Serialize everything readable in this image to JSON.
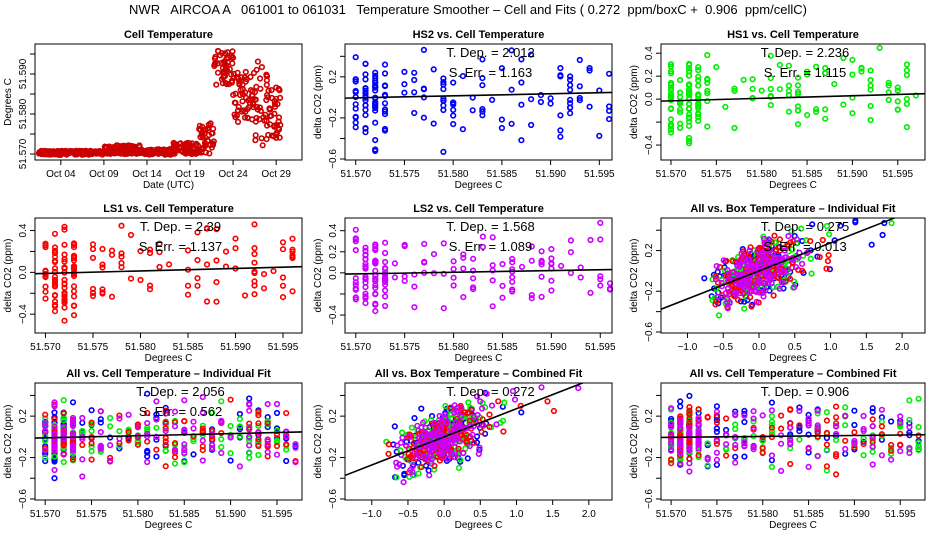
{
  "title": "NWR   AIRCOA A   061001 to 061031   Temperature Smoother – Cell and Fits ( 0.272  ppm/boxC +  0.906  ppm/cellC)",
  "colors": {
    "cell": "#cc0000",
    "HS2": "#0000ff",
    "HS1": "#00ee00",
    "LS1": "#ff0000",
    "LS2": "#cc00ff",
    "fit": "#000000"
  },
  "chart_data": [
    {
      "id": "cell-temperature",
      "type": "scatter",
      "title": "Cell Temperature",
      "xlabel": "Date (UTC)",
      "ylabel": "Degrees C",
      "xlim": [
        0,
        31
      ],
      "ylim": [
        51.5685,
        51.5975
      ],
      "xticks": [
        {
          "v": 3,
          "label": "Oct 04"
        },
        {
          "v": 8,
          "label": "Oct 09"
        },
        {
          "v": 13,
          "label": "Oct 14"
        },
        {
          "v": 18,
          "label": "Oct 19"
        },
        {
          "v": 23,
          "label": "Oct 24"
        },
        {
          "v": 28,
          "label": "Oct 29"
        }
      ],
      "yticks": [
        {
          "v": 51.57,
          "label": "51.570"
        },
        {
          "v": 51.575,
          "label": ""
        },
        {
          "v": 51.58,
          "label": "51.580"
        },
        {
          "v": 51.585,
          "label": ""
        },
        {
          "v": 51.59,
          "label": "51.590"
        },
        {
          "v": 51.595,
          "label": ""
        }
      ],
      "series": [
        {
          "name": "cell",
          "color_key": "cell",
          "segments": [
            {
              "x0": 0.4,
              "x1": 8.0,
              "ylo": 51.5698,
              "yhi": 51.5708
            },
            {
              "x0": 8.0,
              "x1": 12.5,
              "ylo": 51.57,
              "yhi": 51.5722
            },
            {
              "x0": 12.5,
              "x1": 16.0,
              "ylo": 51.5698,
              "yhi": 51.5712
            },
            {
              "x0": 16.0,
              "x1": 19.0,
              "ylo": 51.57,
              "yhi": 51.573
            },
            {
              "x0": 19.0,
              "x1": 20.8,
              "ylo": 51.57,
              "yhi": 51.578
            },
            {
              "x0": 20.8,
              "x1": 23.0,
              "ylo": 51.587,
              "yhi": 51.596
            },
            {
              "x0": 23.0,
              "x1": 25.5,
              "ylo": 51.578,
              "yhi": 51.591
            },
            {
              "x0": 25.5,
              "x1": 27.0,
              "ylo": 51.572,
              "yhi": 51.594
            },
            {
              "x0": 27.0,
              "x1": 28.6,
              "ylo": 51.574,
              "yhi": 51.587
            }
          ]
        }
      ]
    },
    {
      "id": "hs2-vs-cell",
      "type": "scatter",
      "title": "HS2 vs. Cell Temperature",
      "xlabel": "Degrees C",
      "ylabel": "delta CO2 (ppm)",
      "xlim": [
        51.5689,
        51.5963
      ],
      "ylim": [
        -0.61,
        0.52
      ],
      "xticks": [
        51.57,
        51.575,
        51.58,
        51.585,
        51.59,
        51.595
      ],
      "yticks": [
        {
          "v": -0.6,
          "label": "−0.6"
        },
        {
          "v": -0.4,
          "label": ""
        },
        {
          "v": -0.2,
          "label": "−0.2"
        },
        {
          "v": 0.2,
          "label": "0.2"
        },
        {
          "v": 0.4,
          "label": ""
        }
      ],
      "annotations": [
        "T. Dep. =  2.012",
        "S. Err. =  1.163"
      ],
      "fit": {
        "slope_ppm_per_C": 2.012,
        "y_at_51.570": -0.005
      },
      "series": [
        {
          "name": "HS2",
          "color_key": "HS2",
          "spread": 0.28
        }
      ]
    },
    {
      "id": "hs1-vs-cell",
      "type": "scatter",
      "title": "HS1 vs. Cell Temperature",
      "xlabel": "Degrees C",
      "ylabel": "delta CO2 (ppm)",
      "xlim": [
        51.5689,
        51.598
      ],
      "ylim": [
        -0.53,
        0.48
      ],
      "xticks": [
        51.57,
        51.575,
        51.58,
        51.585,
        51.59,
        51.595
      ],
      "yticks": [
        {
          "v": -0.4,
          "label": "−0.4"
        },
        {
          "v": -0.2,
          "label": ""
        },
        {
          "v": 0.0,
          "label": "0.0"
        },
        {
          "v": 0.2,
          "label": "0.2"
        },
        {
          "v": 0.4,
          "label": "0.4"
        }
      ],
      "annotations": [
        "T. Dep. =  2.236",
        "S. Err. =  1.115"
      ],
      "fit": {
        "slope_ppm_per_C": 2.236,
        "y_at_51.570": -0.015
      },
      "series": [
        {
          "name": "HS1",
          "color_key": "HS1",
          "spread": 0.25
        }
      ]
    },
    {
      "id": "ls1-vs-cell",
      "type": "scatter",
      "title": "LS1 vs. Cell Temperature",
      "xlabel": "Degrees C",
      "ylabel": "delta CO2 (ppm)",
      "xlim": [
        51.5689,
        51.597
      ],
      "ylim": [
        -0.58,
        0.52
      ],
      "xticks": [
        51.57,
        51.575,
        51.58,
        51.585,
        51.59,
        51.595
      ],
      "yticks": [
        {
          "v": -0.4,
          "label": "−0.4"
        },
        {
          "v": -0.2,
          "label": ""
        },
        {
          "v": 0.0,
          "label": "0.0"
        },
        {
          "v": 0.2,
          "label": ""
        },
        {
          "v": 0.4,
          "label": "0.4"
        }
      ],
      "annotations": [
        "T. Dep. =  2.39",
        "S. Err. =  1.137"
      ],
      "fit": {
        "slope_ppm_per_C": 2.39,
        "y_at_51.570": -0.01
      },
      "series": [
        {
          "name": "LS1",
          "color_key": "LS1",
          "spread": 0.25
        }
      ]
    },
    {
      "id": "ls2-vs-cell",
      "type": "scatter",
      "title": "LS2 vs. Cell Temperature",
      "xlabel": "Degrees C",
      "ylabel": "delta CO2 (ppm)",
      "xlim": [
        51.5689,
        51.5962
      ],
      "ylim": [
        -0.57,
        0.52
      ],
      "xticks": [
        51.57,
        51.575,
        51.58,
        51.585,
        51.59,
        51.595
      ],
      "yticks": [
        {
          "v": -0.4,
          "label": "−0.4"
        },
        {
          "v": -0.2,
          "label": ""
        },
        {
          "v": 0.0,
          "label": "0.0"
        },
        {
          "v": 0.2,
          "label": "0.2"
        },
        {
          "v": 0.4,
          "label": "0.4"
        }
      ],
      "annotations": [
        "T. Dep. =  1.568",
        "S. Err. =  1.089"
      ],
      "fit": {
        "slope_ppm_per_C": 1.568,
        "y_at_51.570": -0.01
      },
      "series": [
        {
          "name": "LS2",
          "color_key": "LS2",
          "spread": 0.24
        }
      ]
    },
    {
      "id": "all-vs-box-individual",
      "type": "scatter",
      "title": "All vs. Box Temperature – Individual Fit",
      "xlabel": "Degrees C",
      "ylabel": "delta CO2 (ppm)",
      "xlim": [
        -1.37,
        2.32
      ],
      "ylim": [
        -0.61,
        0.52
      ],
      "xticks": [
        {
          "v": -1.0,
          "label": "−1.0"
        },
        {
          "v": -0.5,
          "label": "−0.5"
        },
        {
          "v": 0.0,
          "label": "0.0"
        },
        {
          "v": 0.5,
          "label": "0.5"
        },
        {
          "v": 1.0,
          "label": "1.0"
        },
        {
          "v": 1.5,
          "label": "1.5"
        },
        {
          "v": 2.0,
          "label": "2.0"
        }
      ],
      "yticks": [
        {
          "v": -0.6,
          "label": "−0.6"
        },
        {
          "v": -0.4,
          "label": ""
        },
        {
          "v": -0.2,
          "label": "−0.2"
        },
        {
          "v": 0.2,
          "label": "0.2"
        },
        {
          "v": 0.4,
          "label": ""
        }
      ],
      "annotations": [
        "T. Dep. =  0.275",
        "S. Err. =  0.013"
      ],
      "fit": {
        "slope_ppm_per_C": 0.275,
        "y_at_0": 0.0
      },
      "series": [
        {
          "name": "HS2",
          "color_key": "HS2"
        },
        {
          "name": "HS1",
          "color_key": "HS1"
        },
        {
          "name": "LS1",
          "color_key": "LS1"
        },
        {
          "name": "LS2",
          "color_key": "LS2"
        }
      ]
    },
    {
      "id": "all-vs-cell-individual",
      "type": "scatter",
      "title": "All vs. Cell Temperature – Individual Fit",
      "xlabel": "Degrees C",
      "ylabel": "delta CO2 (ppm)",
      "xlim": [
        51.5689,
        51.5977
      ],
      "ylim": [
        -0.61,
        0.52
      ],
      "xticks": [
        51.57,
        51.575,
        51.58,
        51.585,
        51.59,
        51.595
      ],
      "yticks": [
        {
          "v": -0.6,
          "label": "−0.6"
        },
        {
          "v": -0.4,
          "label": ""
        },
        {
          "v": -0.2,
          "label": "−0.2"
        },
        {
          "v": 0.2,
          "label": "0.2"
        },
        {
          "v": 0.4,
          "label": ""
        }
      ],
      "annotations": [
        "T. Dep. =  2.056",
        "S. Err. =  0.562"
      ],
      "fit": {
        "slope_ppm_per_C": 2.056,
        "y_at_51.570": -0.01
      },
      "series": [
        {
          "name": "HS2",
          "color_key": "HS2"
        },
        {
          "name": "HS1",
          "color_key": "HS1"
        },
        {
          "name": "LS1",
          "color_key": "LS1"
        },
        {
          "name": "LS2",
          "color_key": "LS2"
        }
      ]
    },
    {
      "id": "all-vs-box-combined",
      "type": "scatter",
      "title": "All vs. Box Temperature – Combined Fit",
      "xlabel": "Degrees C",
      "ylabel": "delta CO2 (ppm)",
      "xlim": [
        -1.37,
        2.32
      ],
      "ylim": [
        -0.61,
        0.52
      ],
      "xticks": [
        {
          "v": -1.0,
          "label": "−1.0"
        },
        {
          "v": -0.5,
          "label": "−0.5"
        },
        {
          "v": 0.0,
          "label": "0.0"
        },
        {
          "v": 0.5,
          "label": "0.5"
        },
        {
          "v": 1.0,
          "label": "1.0"
        },
        {
          "v": 1.5,
          "label": "1.5"
        },
        {
          "v": 2.0,
          "label": "2.0"
        }
      ],
      "yticks": [
        {
          "v": -0.6,
          "label": "−0.6"
        },
        {
          "v": -0.4,
          "label": ""
        },
        {
          "v": -0.2,
          "label": "−0.2"
        },
        {
          "v": 0.2,
          "label": "0.2"
        },
        {
          "v": 0.4,
          "label": ""
        }
      ],
      "annotations": [
        "T. Dep. =  0.272"
      ],
      "fit": {
        "slope_ppm_per_C": 0.272,
        "y_at_0": 0.0
      },
      "series": [
        {
          "name": "HS2",
          "color_key": "HS2"
        },
        {
          "name": "HS1",
          "color_key": "HS1"
        },
        {
          "name": "LS1",
          "color_key": "LS1"
        },
        {
          "name": "LS2",
          "color_key": "LS2"
        }
      ]
    },
    {
      "id": "all-vs-cell-combined",
      "type": "scatter",
      "title": "All vs. Cell Temperature – Combined Fit",
      "xlabel": "Degrees C",
      "ylabel": "delta CO2 (ppm)",
      "xlim": [
        51.5689,
        51.5977
      ],
      "ylim": [
        -0.61,
        0.52
      ],
      "xticks": [
        51.57,
        51.575,
        51.58,
        51.585,
        51.59,
        51.595
      ],
      "yticks": [
        {
          "v": -0.6,
          "label": "−0.6"
        },
        {
          "v": -0.4,
          "label": ""
        },
        {
          "v": -0.2,
          "label": "−0.2"
        },
        {
          "v": 0.2,
          "label": "0.2"
        },
        {
          "v": 0.4,
          "label": ""
        }
      ],
      "annotations": [
        "T. Dep. =  0.906"
      ],
      "fit": {
        "slope_ppm_per_C": 0.906,
        "y_at_51.570": -0.005
      },
      "series": [
        {
          "name": "HS2",
          "color_key": "HS2"
        },
        {
          "name": "HS1",
          "color_key": "HS1"
        },
        {
          "name": "LS1",
          "color_key": "LS1"
        },
        {
          "name": "LS2",
          "color_key": "LS2"
        }
      ]
    }
  ]
}
